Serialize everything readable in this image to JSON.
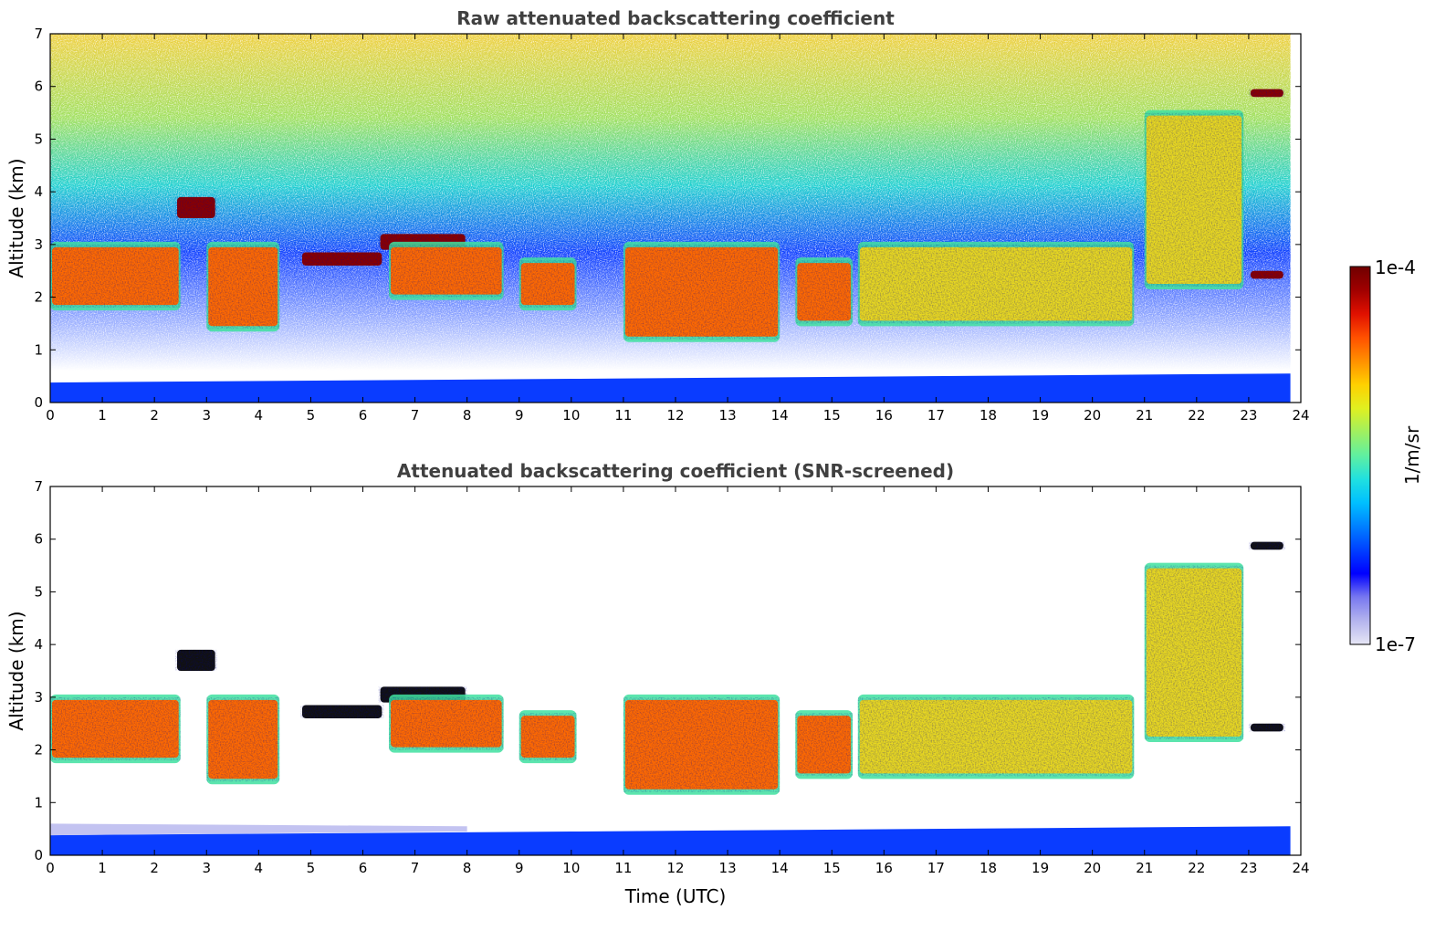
{
  "chart_data": [
    {
      "type": "heatmap",
      "title": "Raw attenuated backscattering coefficient",
      "xlabel": "",
      "ylabel": "Altitude (km)",
      "xlim": [
        0,
        24
      ],
      "ylim": [
        0,
        7
      ],
      "x_ticks": [
        0,
        1,
        2,
        3,
        4,
        5,
        6,
        7,
        8,
        9,
        10,
        11,
        12,
        13,
        14,
        15,
        16,
        17,
        18,
        19,
        20,
        21,
        22,
        23,
        24
      ],
      "y_ticks": [
        0,
        1,
        2,
        3,
        4,
        5,
        6,
        7
      ],
      "data_end_time": 23.8,
      "colorscale": "jet",
      "grid": false,
      "features": [
        {
          "kind": "surface_layer",
          "t_start": 0,
          "t_end": 23.8,
          "top_km": [
            0.35,
            0.55
          ],
          "level": "low"
        },
        {
          "kind": "noise_background",
          "t_start": 0,
          "t_end": 23.8,
          "bottom_km": 0.6,
          "top_km": 7,
          "level": "low-to-mid"
        },
        {
          "kind": "cloud_layer",
          "t_start": 0.0,
          "t_end": 2.5,
          "base_km": 1.8,
          "top_km": 3.0,
          "level": "high"
        },
        {
          "kind": "cloud_layer",
          "t_start": 2.4,
          "t_end": 3.2,
          "base_km": 3.5,
          "top_km": 3.9,
          "level": "saturated"
        },
        {
          "kind": "cloud_layer",
          "t_start": 3.0,
          "t_end": 4.4,
          "base_km": 1.4,
          "top_km": 3.0,
          "level": "high"
        },
        {
          "kind": "cloud_layer",
          "t_start": 4.8,
          "t_end": 6.4,
          "base_km": 2.6,
          "top_km": 2.85,
          "level": "saturated"
        },
        {
          "kind": "cloud_layer",
          "t_start": 6.3,
          "t_end": 8.0,
          "base_km": 2.9,
          "top_km": 3.2,
          "level": "saturated"
        },
        {
          "kind": "cloud_layer",
          "t_start": 6.5,
          "t_end": 8.7,
          "base_km": 2.0,
          "top_km": 3.0,
          "level": "high"
        },
        {
          "kind": "cloud_layer",
          "t_start": 9.0,
          "t_end": 10.1,
          "base_km": 1.8,
          "top_km": 2.7,
          "level": "high"
        },
        {
          "kind": "cloud_layer",
          "t_start": 11.0,
          "t_end": 14.0,
          "base_km": 1.2,
          "top_km": 3.0,
          "level": "high"
        },
        {
          "kind": "cloud_layer",
          "t_start": 14.3,
          "t_end": 15.4,
          "base_km": 1.5,
          "top_km": 2.7,
          "level": "high"
        },
        {
          "kind": "cloud_layer",
          "t_start": 15.5,
          "t_end": 20.8,
          "base_km": 1.5,
          "top_km": 3.0,
          "level": "mid"
        },
        {
          "kind": "cloud_layer",
          "t_start": 21.0,
          "t_end": 22.9,
          "base_km": 2.2,
          "top_km": 5.5,
          "level": "mid"
        },
        {
          "kind": "cloud_layer",
          "t_start": 23.0,
          "t_end": 23.7,
          "base_km": 2.35,
          "top_km": 2.5,
          "level": "saturated"
        },
        {
          "kind": "cloud_layer",
          "t_start": 23.0,
          "t_end": 23.7,
          "base_km": 5.8,
          "top_km": 5.95,
          "level": "saturated"
        }
      ]
    },
    {
      "type": "heatmap",
      "title": "Attenuated backscattering coefficient (SNR-screened)",
      "xlabel": "Time (UTC)",
      "ylabel": "Altitude (km)",
      "xlim": [
        0,
        24
      ],
      "ylim": [
        0,
        7
      ],
      "x_ticks": [
        0,
        1,
        2,
        3,
        4,
        5,
        6,
        7,
        8,
        9,
        10,
        11,
        12,
        13,
        14,
        15,
        16,
        17,
        18,
        19,
        20,
        21,
        22,
        23,
        24
      ],
      "y_ticks": [
        0,
        1,
        2,
        3,
        4,
        5,
        6,
        7
      ],
      "data_end_time": 23.8,
      "colorscale": "jet",
      "grid": false,
      "screening": "low-SNR pixels masked to white; saturated pixels shown black"
    }
  ],
  "colorbar": {
    "label": "1/m/sr",
    "min_label": "1e-7",
    "max_label": "1e-4",
    "scale": "log",
    "colors": [
      "#e6e6f5",
      "#b4b4ee",
      "#7878f0",
      "#0000ff",
      "#0040ff",
      "#0080ff",
      "#00c0ff",
      "#20e0e0",
      "#60f0a0",
      "#a0f060",
      "#e0f020",
      "#ffd000",
      "#ff9000",
      "#ff5000",
      "#e01000",
      "#a00000",
      "#700000"
    ]
  }
}
